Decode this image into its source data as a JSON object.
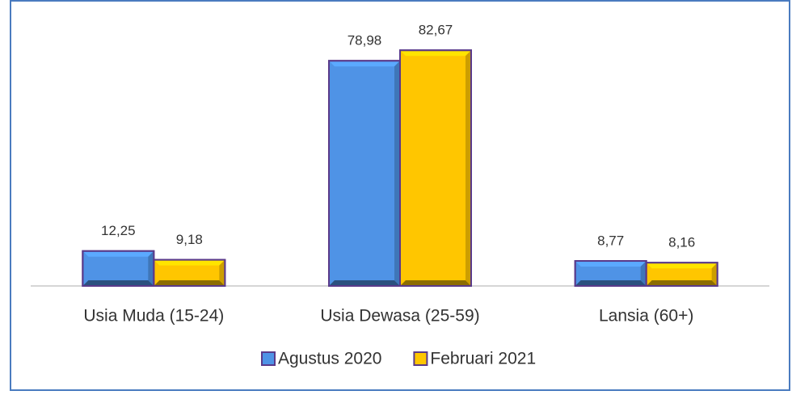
{
  "chart_data": {
    "type": "bar",
    "categories": [
      "Usia Muda (15-24)",
      "Usia Dewasa (25-59)",
      "Lansia (60+)"
    ],
    "series": [
      {
        "name": "Agustus 2020",
        "color": "#4f93e6",
        "values": [
          12.25,
          78.98,
          8.77
        ],
        "value_labels": [
          "12,25",
          "78,98",
          "8,77"
        ]
      },
      {
        "name": "Februari 2021",
        "color": "#ffc600",
        "values": [
          9.18,
          82.67,
          8.16
        ],
        "value_labels": [
          "9,18",
          "82,67",
          "8,16"
        ]
      }
    ],
    "ylim": [
      0,
      85
    ],
    "legend": "bottom"
  }
}
